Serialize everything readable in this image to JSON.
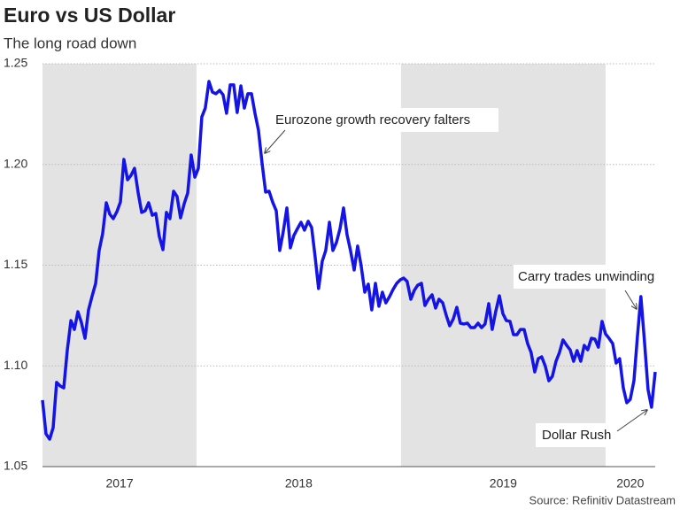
{
  "chart_data": {
    "type": "line",
    "title": "Euro vs US Dollar",
    "subtitle": "The long road down",
    "source": "Source: Refinitiv Datastream",
    "color": "#1414e6",
    "grid": true,
    "xlim": [
      2017.247,
      2020.243
    ],
    "ylim": [
      1.05,
      1.25
    ],
    "yticks": [
      1.05,
      {
        "value": 1.1,
        "label": "1.10"
      },
      1.15,
      {
        "value": 1.2,
        "label": "1.20"
      },
      1.25
    ],
    "xticks": [
      {
        "value": 2017.624,
        "label": "2017"
      },
      {
        "value": 2018.5,
        "label": "2018"
      },
      {
        "value": 2019.5,
        "label": "2019"
      },
      {
        "value": 2020.121,
        "label": "2020"
      }
    ],
    "shaded": [
      [
        2017.247,
        2018
      ],
      [
        2019,
        2020
      ]
    ],
    "annotations": [
      "Eurozone growth recovery falters",
      "Carry trades unwinding",
      "Dollar Rush"
    ],
    "x": [
      2017.247,
      2017.264,
      2017.282,
      2017.299,
      2017.316,
      2017.334,
      2017.351,
      2017.368,
      2017.386,
      2017.403,
      2017.42,
      2017.437,
      2017.455,
      2017.472,
      2017.489,
      2017.507,
      2017.524,
      2017.541,
      2017.559,
      2017.576,
      2017.593,
      2017.611,
      2017.628,
      2017.645,
      2017.663,
      2017.68,
      2017.697,
      2017.715,
      2017.732,
      2017.749,
      2017.766,
      2017.784,
      2017.801,
      2017.818,
      2017.836,
      2017.853,
      2017.87,
      2017.888,
      2017.905,
      2017.922,
      2017.94,
      2017.957,
      2017.974,
      2017.992,
      2018.009,
      2018.026,
      2018.043,
      2018.061,
      2018.078,
      2018.095,
      2018.113,
      2018.13,
      2018.147,
      2018.165,
      2018.182,
      2018.199,
      2018.217,
      2018.234,
      2018.251,
      2018.269,
      2018.286,
      2018.303,
      2018.32,
      2018.338,
      2018.355,
      2018.372,
      2018.39,
      2018.407,
      2018.424,
      2018.442,
      2018.459,
      2018.476,
      2018.494,
      2018.511,
      2018.528,
      2018.546,
      2018.563,
      2018.58,
      2018.597,
      2018.615,
      2018.632,
      2018.65,
      2018.667,
      2018.684,
      2018.702,
      2018.719,
      2018.736,
      2018.753,
      2018.771,
      2018.788,
      2018.805,
      2018.823,
      2018.84,
      2018.857,
      2018.875,
      2018.892,
      2018.909,
      2018.926,
      2018.944,
      2018.961,
      2018.979,
      2018.996,
      2019.013,
      2019.03,
      2019.048,
      2019.065,
      2019.082,
      2019.1,
      2019.117,
      2019.134,
      2019.152,
      2019.169,
      2019.186,
      2019.204,
      2019.221,
      2019.238,
      2019.256,
      2019.273,
      2019.29,
      2019.307,
      2019.325,
      2019.342,
      2019.359,
      2019.377,
      2019.394,
      2019.411,
      2019.429,
      2019.446,
      2019.463,
      2019.481,
      2019.498,
      2019.515,
      2019.533,
      2019.55,
      2019.567,
      2019.584,
      2019.602,
      2019.619,
      2019.636,
      2019.654,
      2019.671,
      2019.688,
      2019.706,
      2019.723,
      2019.74,
      2019.758,
      2019.775,
      2019.792,
      2019.81,
      2019.827,
      2019.844,
      2019.861,
      2019.879,
      2019.896,
      2019.913,
      2019.931,
      2019.948,
      2019.965,
      2019.983,
      2020.0,
      2020.017,
      2020.035,
      2020.052,
      2020.069,
      2020.087,
      2020.104,
      2020.121,
      2020.139,
      2020.156,
      2020.173,
      2020.191,
      2020.208,
      2020.225,
      2020.243
    ],
    "values": [
      1.083,
      1.0663,
      1.0636,
      1.0693,
      1.0918,
      1.09,
      1.0891,
      1.1076,
      1.1225,
      1.1181,
      1.1269,
      1.1216,
      1.1137,
      1.1278,
      1.1344,
      1.141,
      1.1573,
      1.1656,
      1.181,
      1.1753,
      1.1731,
      1.1766,
      1.1814,
      1.2025,
      1.1924,
      1.1946,
      1.1981,
      1.1858,
      1.1762,
      1.177,
      1.181,
      1.1748,
      1.1757,
      1.1643,
      1.1577,
      1.1762,
      1.1731,
      1.1867,
      1.1841,
      1.1735,
      1.1806,
      1.1858,
      1.2047,
      1.1937,
      1.1981,
      1.2236,
      1.228,
      1.2412,
      1.2359,
      1.2351,
      1.2368,
      1.2346,
      1.2254,
      1.2395,
      1.2395,
      1.2258,
      1.239,
      1.228,
      1.2351,
      1.2351,
      1.2254,
      1.217,
      1.2012,
      1.1863,
      1.1867,
      1.1814,
      1.177,
      1.1573,
      1.1665,
      1.1784,
      1.1586,
      1.1647,
      1.1682,
      1.1713,
      1.1674,
      1.1718,
      1.1687,
      1.1542,
      1.1384,
      1.152,
      1.1573,
      1.1713,
      1.1573,
      1.1612,
      1.1682,
      1.1784,
      1.1652,
      1.1573,
      1.1476,
      1.1595,
      1.1498,
      1.1366,
      1.1406,
      1.1278,
      1.141,
      1.1296,
      1.1366,
      1.1313,
      1.1344,
      1.1379,
      1.141,
      1.1427,
      1.1436,
      1.1419,
      1.1331,
      1.1375,
      1.1401,
      1.141,
      1.13,
      1.1331,
      1.1353,
      1.1287,
      1.1331,
      1.1313,
      1.1252,
      1.1199,
      1.1234,
      1.1291,
      1.1212,
      1.1208,
      1.1212,
      1.119,
      1.119,
      1.1212,
      1.119,
      1.1208,
      1.1309,
      1.1181,
      1.1269,
      1.1348,
      1.126,
      1.1225,
      1.1221,
      1.1155,
      1.1155,
      1.1181,
      1.1181,
      1.1111,
      1.1067,
      1.097,
      1.1036,
      1.1045,
      1.0997,
      1.0926,
      1.0948,
      1.1023,
      1.1067,
      1.1129,
      1.1102,
      1.108,
      1.1023,
      1.1076,
      1.1023,
      1.1102,
      1.108,
      1.1137,
      1.1133,
      1.1093,
      1.1221,
      1.1159,
      1.1137,
      1.1111,
      1.1014,
      1.1036,
      1.0891,
      1.0817,
      1.0834,
      1.0926,
      1.1146,
      1.1344,
      1.1115,
      1.0882,
      1.0795,
      1.097
    ]
  }
}
